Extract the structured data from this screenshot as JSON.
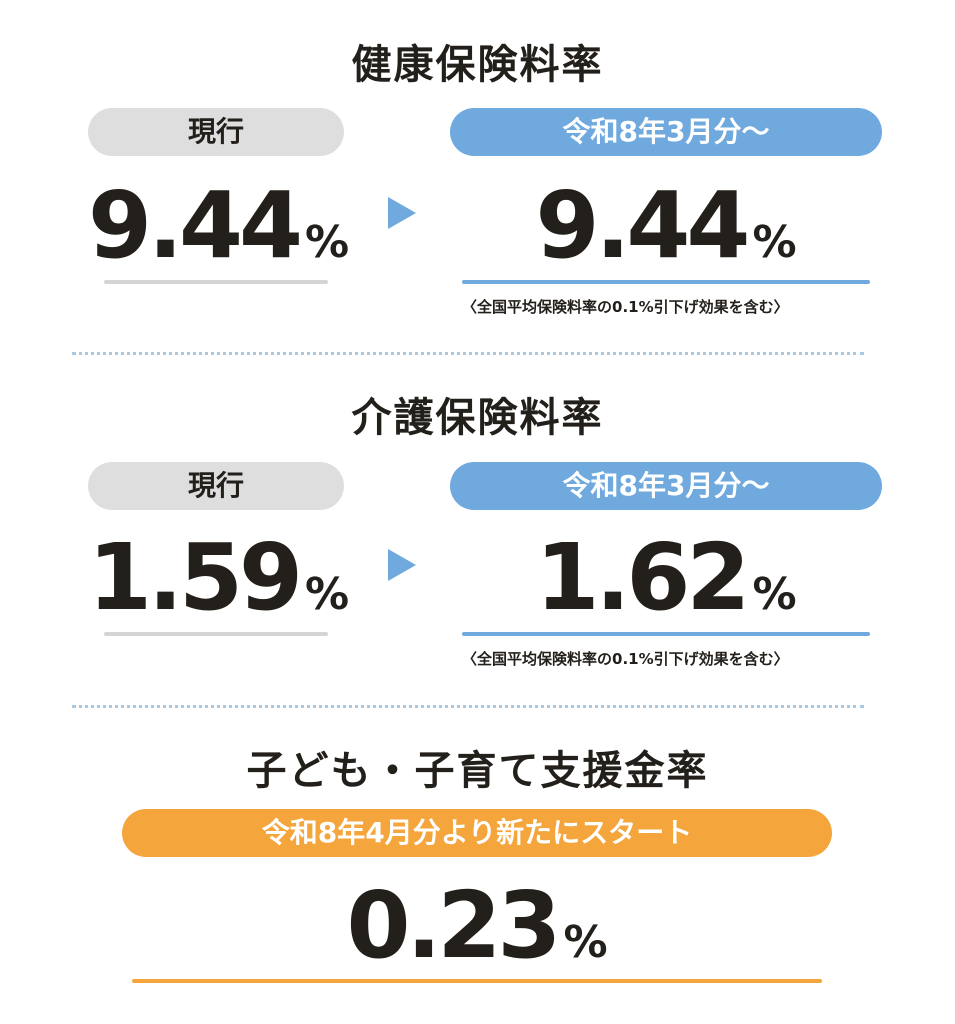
{
  "health": {
    "title": "健康保険料率",
    "current_label": "現行",
    "new_label": "令和8年3月分〜",
    "current_value": "9.44",
    "new_value": "9.44",
    "unit": "%",
    "note": "〈全国平均保険料率の0.1%引下げ効果を含む〉"
  },
  "care": {
    "title": "介護保険料率",
    "current_label": "現行",
    "new_label": "令和8年3月分〜",
    "current_value": "1.59",
    "new_value": "1.62",
    "unit": "%",
    "note": "〈全国平均保険料率の0.1%引下げ効果を含む〉"
  },
  "child": {
    "title": "子ども・子育て支援金率",
    "start_label": "令和8年4月分より新たにスタート",
    "value": "0.23",
    "unit": "%"
  },
  "colors": {
    "text": "#231f1a",
    "gray_pill": "#dedede",
    "blue": "#6fa9de",
    "orange": "#f4a53c",
    "dots": "#a9c8e4"
  }
}
